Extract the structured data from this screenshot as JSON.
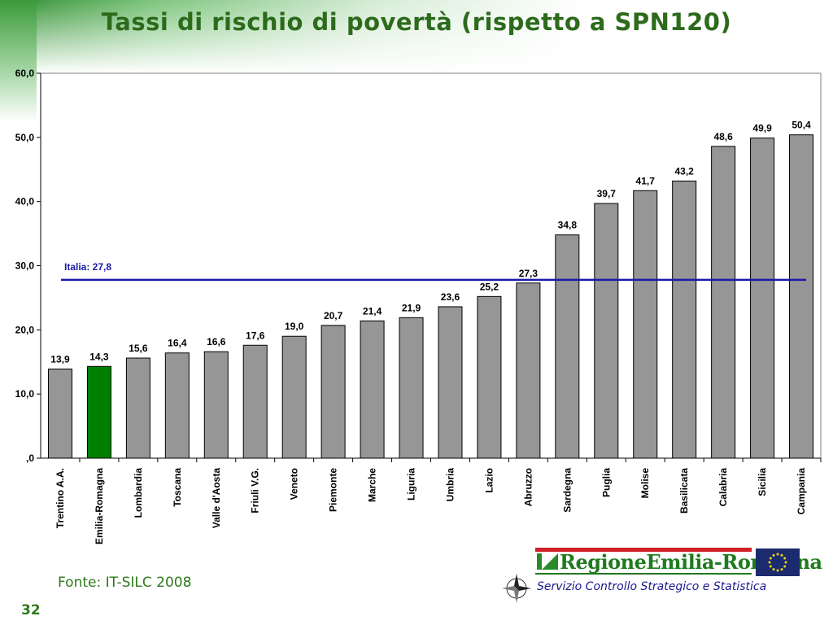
{
  "title": "Tassi di rischio di povertà (rispetto a SPN120)",
  "source": "Fonte: IT-SILC 2008",
  "page_number": "32",
  "logo_text": "RegioneEmilia-Romagna",
  "service_text": "Servizio Controllo Strategico e Statistica",
  "chart_data": {
    "type": "bar",
    "categories": [
      "Trentino A.A.",
      "Emilia-Romagna",
      "Lombardia",
      "Toscana",
      "Valle d'Aosta",
      "Friuli V.G.",
      "Veneto",
      "Piemonte",
      "Marche",
      "Liguria",
      "Umbria",
      "Lazio",
      "Abruzzo",
      "Sardegna",
      "Puglia",
      "Molise",
      "Basilicata",
      "Calabria",
      "Sicilia",
      "Campania"
    ],
    "values": [
      13.9,
      14.3,
      15.6,
      16.4,
      16.6,
      17.6,
      19.0,
      20.7,
      21.4,
      21.9,
      23.6,
      25.2,
      27.3,
      34.8,
      39.7,
      41.7,
      43.2,
      48.6,
      49.9,
      50.4
    ],
    "value_labels": [
      "13,9",
      "14,3",
      "15,6",
      "16,4",
      "16,6",
      "17,6",
      "19,0",
      "20,7",
      "21,4",
      "21,9",
      "23,6",
      "25,2",
      "27,3",
      "34,8",
      "39,7",
      "41,7",
      "43,2",
      "48,6",
      "49,9",
      "50,4"
    ],
    "highlight_category": "Emilia-Romagna",
    "bar_color": "#969696",
    "highlight_color": "#008000",
    "yticks": [
      0,
      10,
      20,
      30,
      40,
      50,
      60
    ],
    "ytick_labels": [
      ",0",
      "10,0",
      "20,0",
      "30,0",
      "40,0",
      "50,0",
      "60,0"
    ],
    "ylim": [
      0,
      60
    ],
    "reference_line": {
      "label": "Italia: 27,8",
      "value": 27.8,
      "color": "#1a1aa8"
    },
    "xlabel": "",
    "ylabel": ""
  }
}
